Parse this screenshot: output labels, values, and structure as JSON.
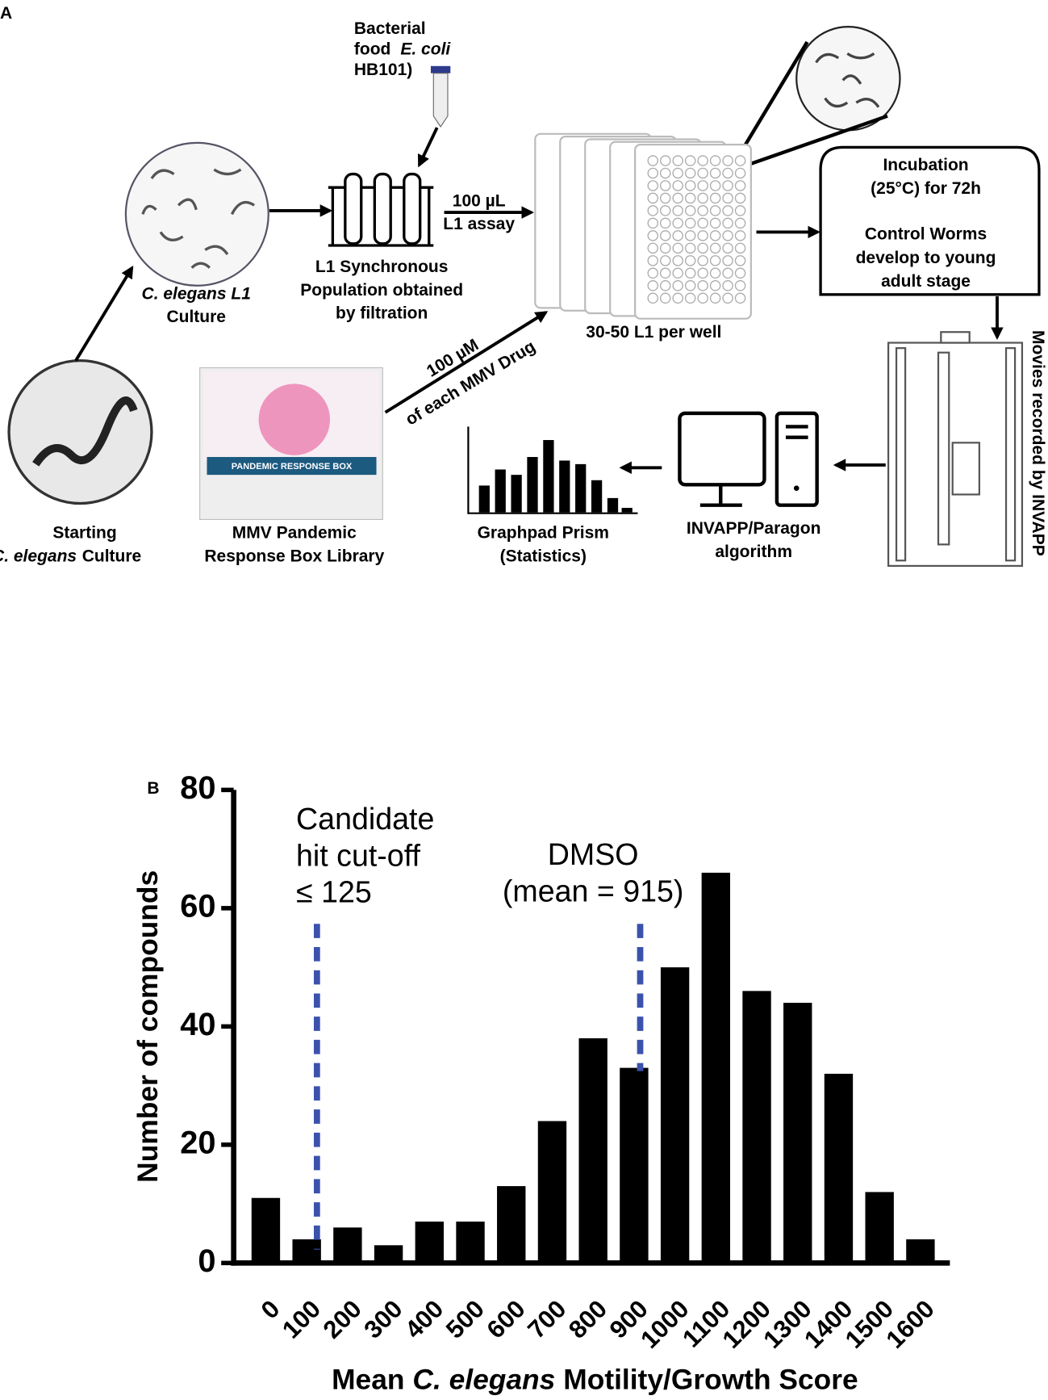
{
  "panel_a": {
    "label": "A",
    "bacterial_food": [
      "Bacterial",
      "food",
      "E. coli",
      "HB101)"
    ],
    "l1_culture": [
      "C. elegans L1",
      "Culture"
    ],
    "synchronous": [
      "L1 Synchronous",
      "Population obtained",
      "by filtration"
    ],
    "assay": [
      "100 µL",
      "L1 assay"
    ],
    "per_well": "30-50 L1 per well",
    "incubation": [
      "Incubation",
      "(25°C) for 72h",
      "Control Worms",
      "develop to young",
      "adult stage"
    ],
    "movies": "Movies recorded by INVAPP",
    "drug": [
      "100 µM",
      "of each MMV Drug"
    ],
    "starting": [
      "Starting",
      "C. elegans",
      "Culture"
    ],
    "library": [
      "MMV Pandemic",
      "Response Box Library"
    ],
    "box_label": "PANDEMIC RESPONSE BOX",
    "prism": [
      "Graphpad Prism",
      "(Statistics)"
    ],
    "invapp": [
      "INVAPP/Paragon",
      "algorithm"
    ]
  },
  "chart_data": {
    "type": "bar",
    "label": "B",
    "x": [
      0,
      100,
      200,
      300,
      400,
      500,
      600,
      700,
      800,
      900,
      1000,
      1100,
      1200,
      1300,
      1400,
      1500,
      1600
    ],
    "values": [
      11,
      4,
      6,
      3,
      7,
      7,
      13,
      24,
      38,
      33,
      50,
      66,
      46,
      44,
      32,
      12,
      4
    ],
    "color": "#000000",
    "xlim": [
      -50,
      1650
    ],
    "ylim": [
      0,
      80
    ],
    "yticks": [
      0,
      20,
      40,
      60,
      80
    ],
    "ylabel": "Number of compounds",
    "xlabel": [
      "Mean",
      "C. elegans",
      "Motility/Growth Score"
    ],
    "reference_lines": [
      {
        "value": 125,
        "label": [
          "Candidate",
          "hit cut-off",
          "≤ 125"
        ],
        "color": "#3b52ad"
      },
      {
        "value": 915,
        "label": [
          "DMSO",
          "(mean = 915)"
        ],
        "color": "#3b52ad"
      }
    ]
  }
}
